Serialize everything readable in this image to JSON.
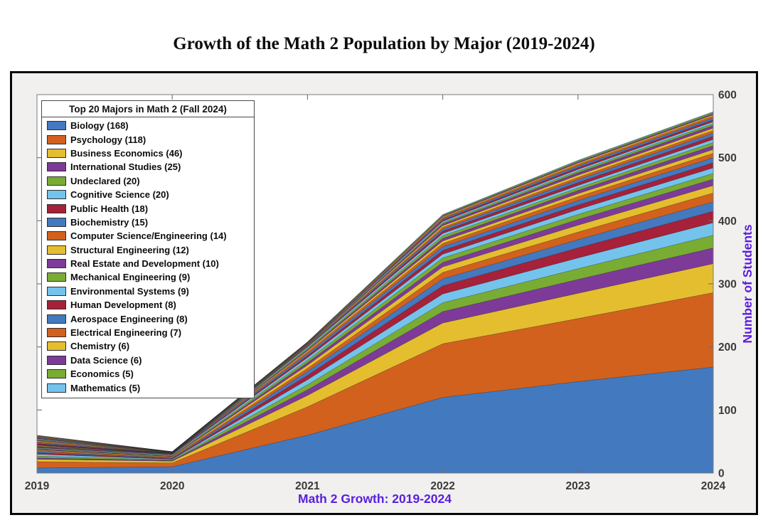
{
  "page_title": "Growth of the Math 2 Population by Major (2019-2024)",
  "legend": {
    "title": "Top 20 Majors in Math 2 (Fall 2024)"
  },
  "axes": {
    "x_label": "Math 2 Growth: 2019-2024",
    "y_label": "Number of Students",
    "axis_label_color": "#5A1EE0",
    "tick_label_color": "#3A3A3A",
    "x_ticks": [
      "2019",
      "2020",
      "2021",
      "2022",
      "2023",
      "2024"
    ],
    "y_ticks": [
      0,
      100,
      200,
      300,
      400,
      500,
      600
    ]
  },
  "palette": [
    "#4379BE",
    "#D2611E",
    "#E4BE2F",
    "#7D3A98",
    "#79AC33",
    "#74C3ED",
    "#A62139"
  ],
  "chart_data": {
    "type": "area",
    "stacked": true,
    "title": "Growth of the Math 2 Population by Major (2019-2024)",
    "xlabel": "Math 2 Growth: 2019-2024",
    "ylabel": "Number of Students",
    "ylim": [
      0,
      600
    ],
    "legend_position": "top-left",
    "grid": false,
    "categories": [
      2019,
      2020,
      2021,
      2022,
      2023,
      2024
    ],
    "series": [
      {
        "name": "Biology",
        "count_2024": 168,
        "label": "Biology (168)",
        "color_index": 0,
        "values": [
          8,
          10,
          60,
          120,
          145,
          168
        ]
      },
      {
        "name": "Psychology",
        "count_2024": 118,
        "label": "Psychology (118)",
        "color_index": 1,
        "values": [
          10,
          6,
          45,
          85,
          100,
          118
        ]
      },
      {
        "name": "Business Economics",
        "count_2024": 46,
        "label": "Business Economics (46)",
        "color_index": 2,
        "values": [
          4,
          3,
          18,
          33,
          40,
          46
        ]
      },
      {
        "name": "International Studies",
        "count_2024": 25,
        "label": "International Studies (25)",
        "color_index": 3,
        "values": [
          2,
          1,
          9,
          18,
          22,
          25
        ]
      },
      {
        "name": "Undeclared",
        "count_2024": 20,
        "label": "Undeclared (20)",
        "color_index": 4,
        "values": [
          3,
          1,
          8,
          14,
          17,
          20
        ]
      },
      {
        "name": "Cognitive Science",
        "count_2024": 20,
        "label": "Cognitive Science (20)",
        "color_index": 5,
        "values": [
          3,
          1,
          8,
          14,
          17,
          20
        ]
      },
      {
        "name": "Public Health",
        "count_2024": 18,
        "label": "Public Health (18)",
        "color_index": 6,
        "values": [
          2,
          1,
          7,
          13,
          16,
          18
        ]
      },
      {
        "name": "Biochemistry",
        "count_2024": 15,
        "label": "Biochemistry (15)",
        "color_index": 0,
        "values": [
          2,
          1,
          6,
          11,
          13,
          15
        ]
      },
      {
        "name": "Computer Science/Engineering",
        "count_2024": 14,
        "label": "Computer Science/Engineering (14)",
        "color_index": 1,
        "values": [
          2,
          1,
          5,
          10,
          12,
          14
        ]
      },
      {
        "name": "Structural Engineering",
        "count_2024": 12,
        "label": "Structural Engineering (12)",
        "color_index": 2,
        "values": [
          1,
          1,
          5,
          9,
          11,
          12
        ]
      },
      {
        "name": "Real Estate and Development",
        "count_2024": 10,
        "label": "Real Estate and Development (10)",
        "color_index": 3,
        "values": [
          1,
          1,
          4,
          7,
          9,
          10
        ]
      },
      {
        "name": "Mechanical Engineering",
        "count_2024": 9,
        "label": "Mechanical Engineering (9)",
        "color_index": 4,
        "values": [
          1,
          1,
          4,
          7,
          8,
          9
        ]
      },
      {
        "name": "Environmental Systems",
        "count_2024": 9,
        "label": "Environmental Systems (9)",
        "color_index": 5,
        "values": [
          1,
          1,
          4,
          6,
          8,
          9
        ]
      },
      {
        "name": "Human Development",
        "count_2024": 8,
        "label": "Human Development (8)",
        "color_index": 6,
        "values": [
          1,
          1,
          3,
          6,
          7,
          8
        ]
      },
      {
        "name": "Aerospace Engineering",
        "count_2024": 8,
        "label": "Aerospace Engineering (8)",
        "color_index": 0,
        "values": [
          1,
          1,
          3,
          6,
          7,
          8
        ]
      },
      {
        "name": "Electrical Engineering",
        "count_2024": 7,
        "label": "Electrical Engineering (7)",
        "color_index": 1,
        "values": [
          1,
          0,
          3,
          5,
          6,
          7
        ]
      },
      {
        "name": "Chemistry",
        "count_2024": 6,
        "label": "Chemistry (6)",
        "color_index": 2,
        "values": [
          1,
          0,
          2,
          4,
          5,
          6
        ]
      },
      {
        "name": "Data Science",
        "count_2024": 6,
        "label": "Data Science (6)",
        "color_index": 3,
        "values": [
          1,
          0,
          2,
          4,
          5,
          6
        ]
      },
      {
        "name": "Economics",
        "count_2024": 5,
        "label": "Economics (5)",
        "color_index": 4,
        "values": [
          0,
          0,
          2,
          4,
          4,
          5
        ]
      },
      {
        "name": "Mathematics",
        "count_2024": 5,
        "label": "Mathematics (5)",
        "color_index": 5,
        "values": [
          0,
          0,
          2,
          4,
          4,
          5
        ]
      }
    ],
    "other_majors": {
      "note": "thin unlabeled slivers at top of stack (majors beyond top 20), estimated combined totals",
      "values": [
        15,
        3,
        8,
        30,
        40,
        44
      ],
      "sliver_weights": [
        5,
        5,
        4,
        4,
        4,
        3,
        3,
        3,
        3,
        3,
        2,
        2,
        2,
        1
      ]
    }
  }
}
